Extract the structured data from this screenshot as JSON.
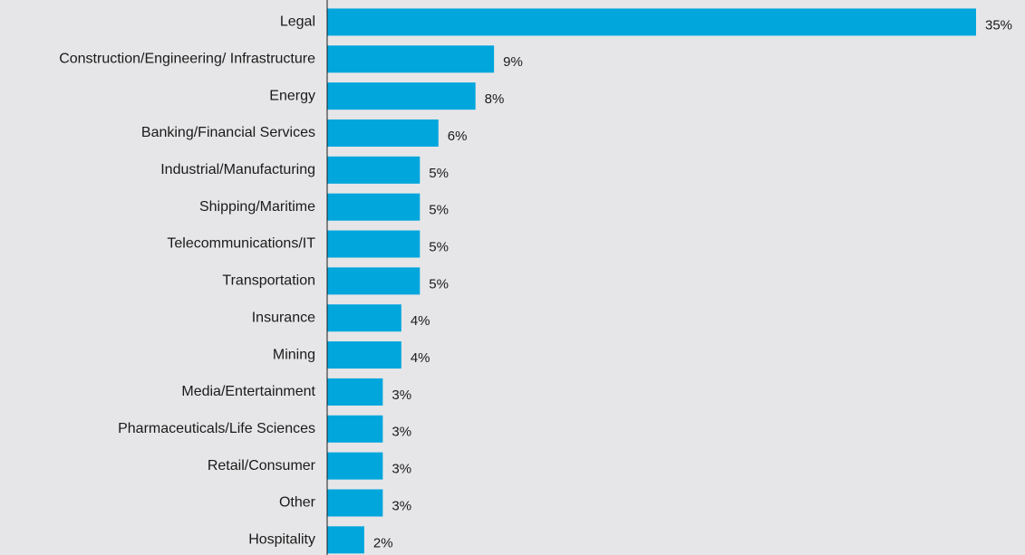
{
  "chart_data": {
    "type": "bar",
    "orientation": "horizontal",
    "categories": [
      "Legal",
      "Construction/Engineering/ Infrastructure",
      "Energy",
      "Banking/Financial Services",
      "Industrial/Manufacturing",
      "Shipping/Maritime",
      "Telecommunications/IT",
      "Transportation",
      "Insurance",
      "Mining",
      "Media/Entertainment",
      "Pharmaceuticals/Life Sciences",
      "Retail/Consumer",
      "Other",
      "Hospitality"
    ],
    "values": [
      35,
      9,
      8,
      6,
      5,
      5,
      5,
      5,
      4,
      4,
      3,
      3,
      3,
      3,
      2
    ],
    "value_labels": [
      "35%",
      "9%",
      "8%",
      "6%",
      "5%",
      "5%",
      "5%",
      "5%",
      "4%",
      "4%",
      "3%",
      "3%",
      "3%",
      "3%",
      "2%"
    ],
    "unit": "%",
    "xlim": [
      0,
      35
    ],
    "grid": false,
    "legend": "none",
    "colors": {
      "bar": "#00a6dc",
      "axis": "#1a1a1a",
      "background": "#e6e6e8",
      "text": "#1a1a1a"
    }
  }
}
